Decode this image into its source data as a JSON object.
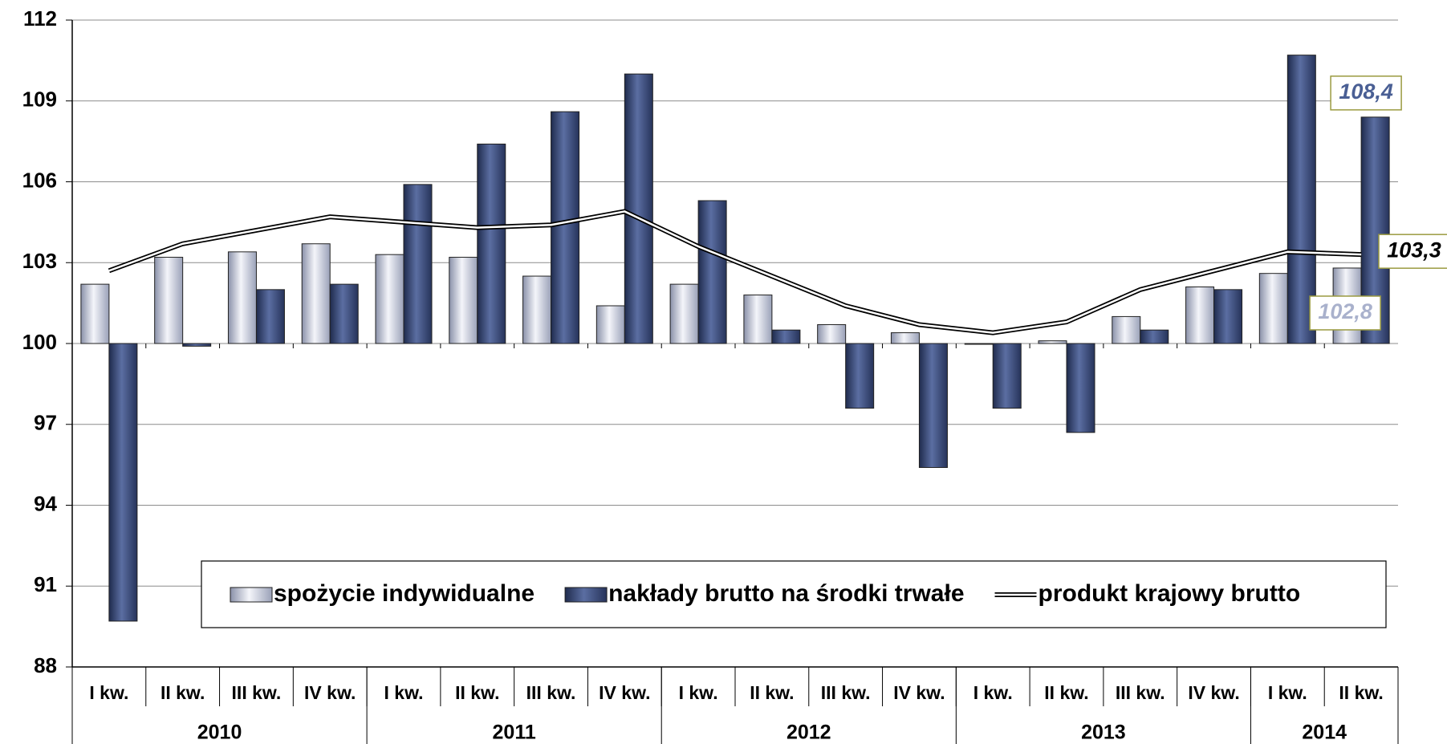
{
  "chart_data": {
    "type": "bar",
    "categories": [
      "I kw.",
      "II kw.",
      "III kw.",
      "IV kw.",
      "I kw.",
      "II kw.",
      "III kw.",
      "IV kw.",
      "I kw.",
      "II kw.",
      "III kw.",
      "IV kw.",
      "I kw.",
      "II kw.",
      "III kw.",
      "IV kw.",
      "I kw.",
      "II kw."
    ],
    "year_labels": [
      "2010",
      null,
      null,
      null,
      "2011",
      null,
      null,
      null,
      "2012",
      null,
      null,
      null,
      "2013",
      null,
      null,
      null,
      "2014",
      null
    ],
    "series": [
      {
        "name": "spożycie indywidualne",
        "type": "bar",
        "color": "#c4c9dc",
        "values": [
          102.2,
          103.2,
          103.4,
          103.7,
          103.3,
          103.2,
          102.5,
          101.4,
          102.2,
          101.8,
          100.7,
          100.4,
          100.0,
          100.1,
          101.0,
          102.1,
          102.6,
          102.8
        ],
        "value_labels": [
          null,
          null,
          null,
          null,
          null,
          null,
          null,
          null,
          null,
          null,
          null,
          null,
          null,
          null,
          null,
          null,
          null,
          "102,8"
        ],
        "label_color": "#a9b1cc"
      },
      {
        "name": "nakłady brutto na środki trwałe",
        "type": "bar",
        "color": "#3d4f80",
        "values": [
          89.7,
          99.9,
          102.0,
          102.2,
          105.9,
          107.4,
          108.6,
          110.0,
          105.3,
          100.5,
          97.6,
          95.4,
          97.6,
          96.7,
          100.5,
          102.0,
          110.7,
          108.4
        ],
        "value_labels": [
          null,
          null,
          null,
          null,
          null,
          null,
          null,
          null,
          null,
          null,
          null,
          null,
          null,
          null,
          null,
          null,
          null,
          "108,4"
        ],
        "label_color": "#4a5f94"
      },
      {
        "name": "produkt krajowy brutto",
        "type": "line",
        "color": "#000000",
        "values": [
          102.7,
          103.7,
          104.2,
          104.7,
          104.5,
          104.3,
          104.4,
          104.9,
          103.6,
          102.5,
          101.4,
          100.7,
          100.4,
          100.8,
          102.0,
          102.7,
          103.4,
          103.3
        ],
        "value_labels": [
          null,
          null,
          null,
          null,
          null,
          null,
          null,
          null,
          null,
          null,
          null,
          null,
          null,
          null,
          null,
          null,
          null,
          "103,3"
        ],
        "label_color": "#000000"
      }
    ],
    "ylim": [
      88,
      112
    ],
    "yticks": [
      88,
      91,
      94,
      97,
      100,
      103,
      106,
      109,
      112
    ],
    "x_axis_crosses": 100,
    "grid": true,
    "legend": "bottom"
  }
}
